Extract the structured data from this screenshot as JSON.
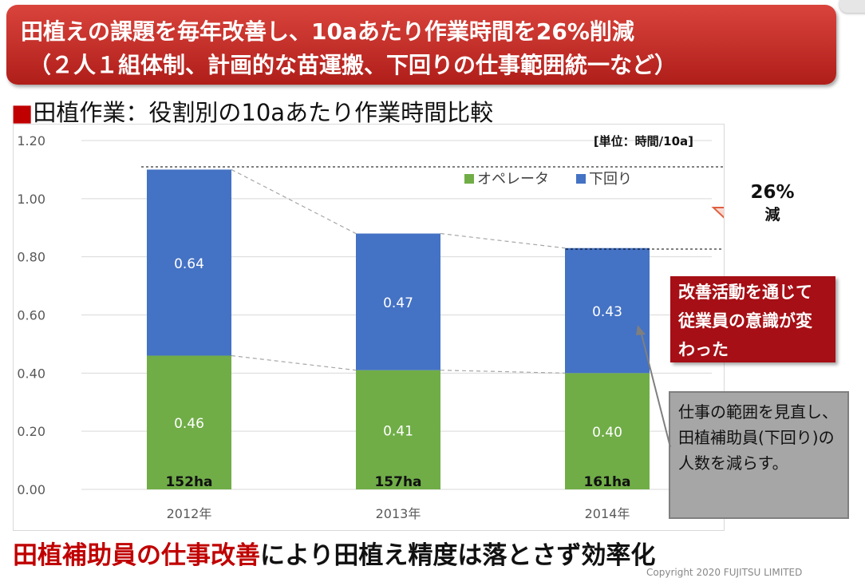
{
  "header": {
    "line1": "田植えの課題を毎年改善し、10aあたり作業時間を26%削減",
    "line2": "（２人１組体制、計画的な苗運搬、下回りの仕事範囲統一など）"
  },
  "section": {
    "marker": "■",
    "title": "田植作業：役割別の10aあたり作業時間比較"
  },
  "chart_data": {
    "type": "bar",
    "stacked": true,
    "categories": [
      "2012年",
      "2013年",
      "2014年"
    ],
    "series": [
      {
        "name": "オペレータ",
        "values": [
          0.46,
          0.41,
          0.4
        ],
        "labels": [
          "0.46",
          "0.41",
          "0.40"
        ],
        "color": "#70ad47"
      },
      {
        "name": "下回り",
        "values": [
          0.64,
          0.47,
          0.43
        ],
        "labels": [
          "0.64",
          "0.47",
          "0.43"
        ],
        "color": "#4472c4"
      }
    ],
    "area_labels": [
      "152ha",
      "157ha",
      "161ha"
    ],
    "unit_label": "[単位：時間/10a]",
    "y_ticks": [
      "0.00",
      "0.20",
      "0.40",
      "0.60",
      "0.80",
      "1.00",
      "1.20"
    ],
    "ylim": [
      0,
      1.2
    ],
    "legend_position": "top-right",
    "gridlines": true
  },
  "reduction": {
    "percent": "26%",
    "word": "減"
  },
  "callouts": {
    "red": "改善活動を通じて従業員の意識が変わった",
    "gray": "仕事の範囲を見直し、田植補助員(下回り)の人数を減らす。"
  },
  "footer": {
    "red_part": "田植補助員の仕事改善",
    "black_part": "により田植え精度は落とさず効率化"
  },
  "copyright": "Copyright 2020 FUJITSU LIMITED",
  "colors": {
    "banner": "#c0302a",
    "accent_red": "#c00000",
    "operator": "#70ad47",
    "helper": "#4472c4"
  }
}
